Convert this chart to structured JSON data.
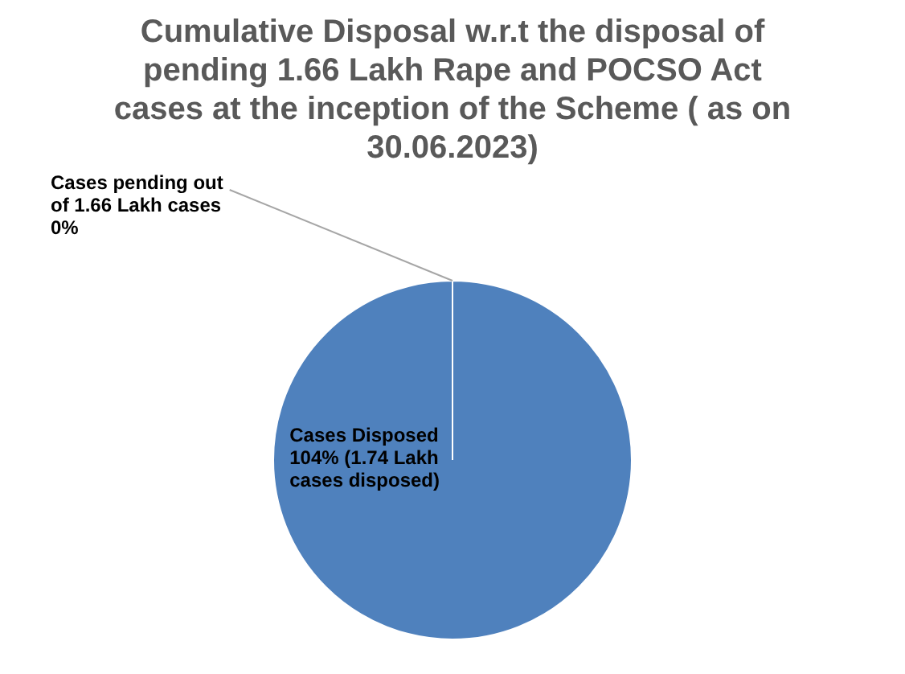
{
  "chart_data": {
    "type": "pie",
    "title": "Cumulative Disposal w.r.t the disposal of pending 1.66 Lakh Rape and POCSO Act cases at the inception of the Scheme ( as on 30.06.2023)",
    "categories": [
      "Cases pending out of 1.66 Lakh cases",
      "Cases Disposed"
    ],
    "values": [
      0,
      104
    ],
    "colors": [
      "#4f81bd",
      "#4f81bd"
    ],
    "value_labels": [
      "0%",
      "104% (1.74 Lakh cases disposed)"
    ],
    "legend": false
  }
}
